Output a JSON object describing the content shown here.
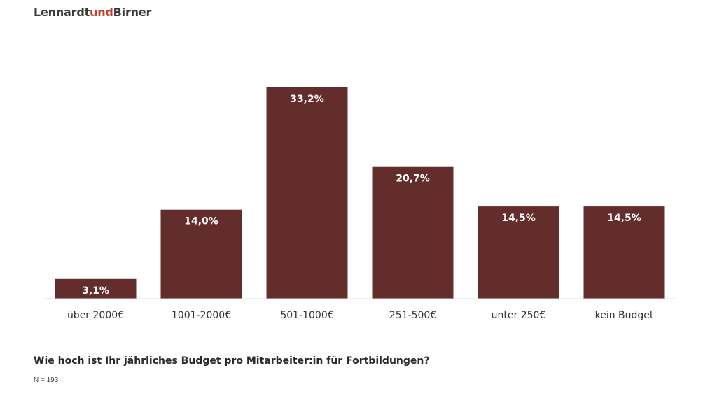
{
  "brand": {
    "part1": "Lennardt",
    "part2": "und",
    "part3": "Birner",
    "accent_color": "#c2412d"
  },
  "chart_data": {
    "type": "bar",
    "categories": [
      "über 2000€",
      "1001-2000€",
      "501-1000€",
      "251-500€",
      "unter 250€",
      "kein Budget"
    ],
    "values": [
      3.1,
      14.0,
      33.2,
      20.7,
      14.5,
      14.5
    ],
    "data_labels": [
      "3,1%",
      "14,0%",
      "33,2%",
      "20,7%",
      "14,5%",
      "14,5%"
    ],
    "unit": "%",
    "bar_color": "#632d2b",
    "label_color": "#ffffff",
    "ylim": [
      0,
      33.2
    ],
    "grid": false,
    "legend": "none"
  },
  "footer": {
    "question": "Wie hoch ist Ihr jährliches Budget pro Mitarbeiter:in für Fortbildungen?",
    "sample": "N = 193"
  }
}
